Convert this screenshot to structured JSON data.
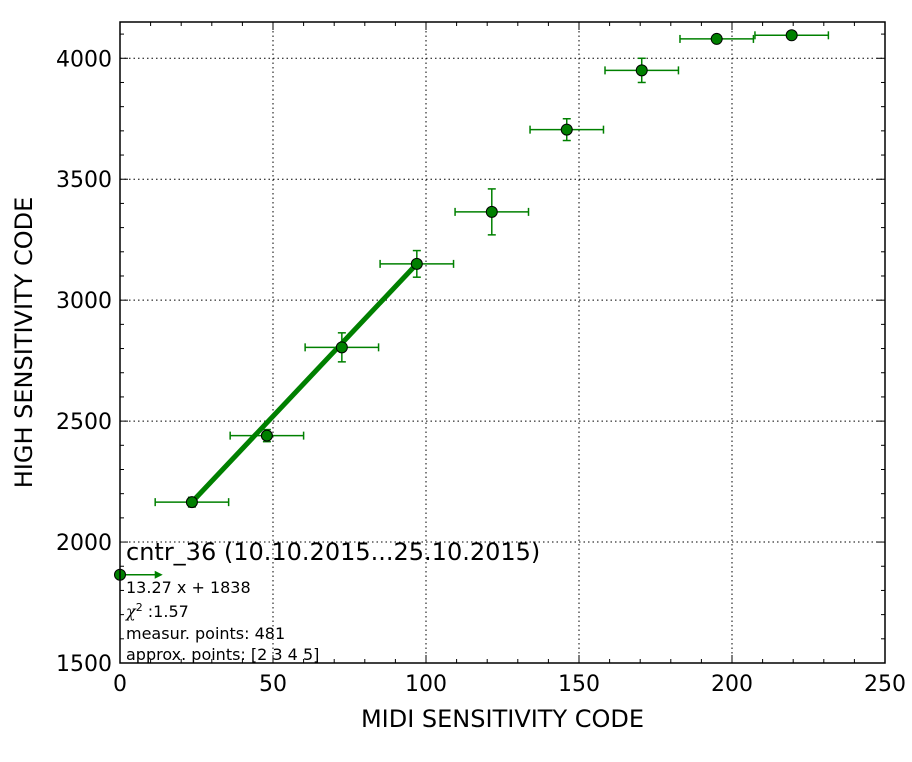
{
  "chart_data": {
    "type": "scatter",
    "xlabel": "MIDI SENSITIVITY CODE",
    "ylabel": "HIGH SENSITIVITY CODE",
    "xlim": [
      0,
      250
    ],
    "ylim": [
      1500,
      4150
    ],
    "xticks": [
      0,
      50,
      100,
      150,
      200,
      250
    ],
    "yticks": [
      1500,
      2000,
      2500,
      3000,
      3500,
      4000
    ],
    "grid": true,
    "color": "#008000",
    "points": [
      {
        "x": 0,
        "y": 1865,
        "xerr": 12,
        "yerr": 0,
        "arrow": true
      },
      {
        "x": 23.5,
        "y": 2165,
        "xerr": 12,
        "yerr": 20
      },
      {
        "x": 48,
        "y": 2440,
        "xerr": 12,
        "yerr": 25
      },
      {
        "x": 72.5,
        "y": 2805,
        "xerr": 12,
        "yerr": 60
      },
      {
        "x": 97,
        "y": 3150,
        "xerr": 12,
        "yerr": 55
      },
      {
        "x": 121.5,
        "y": 3365,
        "xerr": 12,
        "yerr": 95
      },
      {
        "x": 146,
        "y": 3705,
        "xerr": 12,
        "yerr": 45
      },
      {
        "x": 170.5,
        "y": 3950,
        "xerr": 12,
        "yerr": 50
      },
      {
        "x": 195,
        "y": 4080,
        "xerr": 12,
        "yerr": 0
      },
      {
        "x": 219.5,
        "y": 4095,
        "xerr": 12,
        "yerr": 0
      }
    ],
    "fit": {
      "x": [
        23.5,
        97
      ],
      "y": [
        2165,
        3150
      ]
    },
    "annotation": {
      "title": "cntr_36 (10.10.2015...25.10.2015)",
      "equation": "13.27 x + 1838",
      "chi_symbol": "χ",
      "chi_sup": "2",
      "chi_value": " :1.57",
      "measur_points": "measur. points: 481",
      "approx_points": "approx. points: [2 3 4 5]"
    }
  }
}
